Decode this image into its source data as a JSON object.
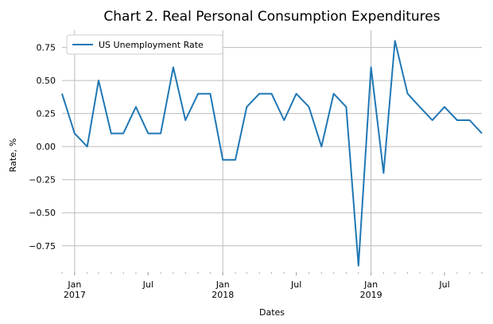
{
  "chart_data": {
    "type": "line",
    "title": "Chart 2. Real Personal Consumption Expenditures",
    "xlabel": "Dates",
    "ylabel": "Rate, %",
    "ylim": [
      -0.95,
      0.88
    ],
    "xlim": [
      "2016-12-01",
      "2019-10-01"
    ],
    "yticks": [
      -0.75,
      -0.5,
      -0.25,
      0.0,
      0.25,
      0.5,
      0.75
    ],
    "ytick_labels": [
      "−0.75",
      "−0.50",
      "−0.25",
      "0.00",
      "0.25",
      "0.50",
      "0.75"
    ],
    "xticks": [
      {
        "date": "2017-01-01",
        "month": "Jan",
        "year": "2017"
      },
      {
        "date": "2017-07-01",
        "month": "Jul",
        "year": ""
      },
      {
        "date": "2018-01-01",
        "month": "Jan",
        "year": "2018"
      },
      {
        "date": "2018-07-01",
        "month": "Jul",
        "year": ""
      },
      {
        "date": "2019-01-01",
        "month": "Jan",
        "year": "2019"
      },
      {
        "date": "2019-07-01",
        "month": "Jul",
        "year": ""
      }
    ],
    "grid": "both",
    "legend": "top-left",
    "series": [
      {
        "name": "US Unemployment Rate",
        "color": "#1f77b4",
        "x": [
          "2016-12-01",
          "2017-01-01",
          "2017-02-01",
          "2017-03-01",
          "2017-04-01",
          "2017-05-01",
          "2017-06-01",
          "2017-07-01",
          "2017-08-01",
          "2017-09-01",
          "2017-10-01",
          "2017-11-01",
          "2017-12-01",
          "2018-01-01",
          "2018-02-01",
          "2018-03-01",
          "2018-04-01",
          "2018-05-01",
          "2018-06-01",
          "2018-07-01",
          "2018-08-01",
          "2018-09-01",
          "2018-10-01",
          "2018-11-01",
          "2018-12-01",
          "2019-01-01",
          "2019-02-01",
          "2019-03-01",
          "2019-04-01",
          "2019-05-01",
          "2019-06-01",
          "2019-07-01",
          "2019-08-01",
          "2019-09-01",
          "2019-10-01"
        ],
        "values": [
          0.4,
          0.1,
          0.0,
          0.5,
          0.1,
          0.1,
          0.3,
          0.1,
          0.1,
          0.6,
          0.2,
          0.4,
          0.4,
          -0.1,
          -0.1,
          0.3,
          0.4,
          0.4,
          0.2,
          0.4,
          0.3,
          0.0,
          0.4,
          0.3,
          -0.9,
          0.6,
          -0.2,
          0.8,
          0.4,
          0.3,
          0.2,
          0.3,
          0.2,
          0.2,
          0.1
        ]
      }
    ]
  }
}
